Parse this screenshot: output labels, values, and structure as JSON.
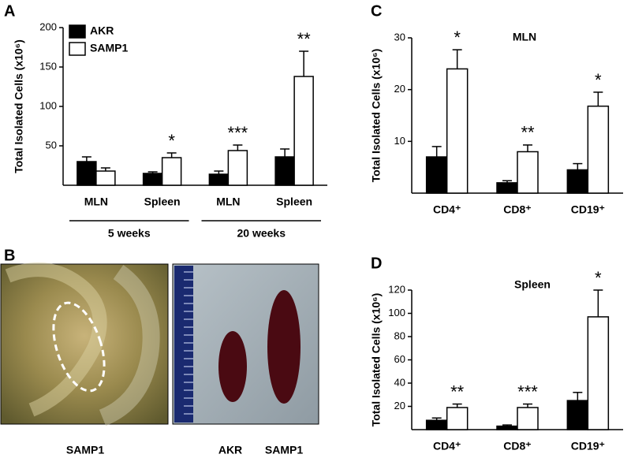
{
  "chart_data": [
    {
      "type": "bar",
      "panel_label": "A",
      "ylabel": "Total Isolated Cells (x10⁶)",
      "categories": [
        "MLN",
        "Spleen",
        "MLN",
        "Spleen"
      ],
      "groups": [
        "5 weeks",
        "20 weeks"
      ],
      "ylim": [
        0,
        200
      ],
      "yticks": [
        50,
        100,
        150,
        200
      ],
      "series": [
        {
          "name": "AKR",
          "color": "#000000",
          "values": [
            30,
            15,
            14,
            36
          ],
          "errors": [
            6,
            2,
            4,
            10
          ]
        },
        {
          "name": "SAMP1",
          "color": "#ffffff",
          "values": [
            18,
            35,
            44,
            138
          ],
          "errors": [
            4,
            6,
            7,
            32
          ]
        }
      ],
      "annotations": [
        null,
        "*",
        "***",
        "**"
      ]
    },
    {
      "type": "bar",
      "panel_label": "C",
      "title": "MLN",
      "ylabel": "Total Isolated Cells (x10⁶)",
      "categories": [
        "CD4⁺",
        "CD8⁺",
        "CD19⁺"
      ],
      "ylim": [
        0,
        30
      ],
      "yticks": [
        10,
        20,
        30
      ],
      "series": [
        {
          "name": "AKR",
          "color": "#000000",
          "values": [
            7,
            2,
            4.5
          ],
          "errors": [
            2,
            0.4,
            1.2
          ]
        },
        {
          "name": "SAMP1",
          "color": "#ffffff",
          "values": [
            24,
            8,
            16.8
          ],
          "errors": [
            3.7,
            1.3,
            2.7
          ]
        }
      ],
      "annotations": [
        "*",
        "**",
        "*"
      ]
    },
    {
      "type": "bar",
      "panel_label": "D",
      "title": "Spleen",
      "ylabel": "Total Isolated Cells (x10⁶)",
      "categories": [
        "CD4⁺",
        "CD8⁺",
        "CD19⁺"
      ],
      "ylim": [
        0,
        120
      ],
      "yticks": [
        20,
        40,
        60,
        80,
        100,
        120
      ],
      "series": [
        {
          "name": "AKR",
          "color": "#000000",
          "values": [
            8,
            3,
            25
          ],
          "errors": [
            2,
            1,
            7
          ]
        },
        {
          "name": "SAMP1",
          "color": "#ffffff",
          "values": [
            19,
            19,
            97
          ],
          "errors": [
            3,
            3,
            23
          ]
        }
      ],
      "annotations": [
        "**",
        "***",
        "*"
      ]
    }
  ],
  "panel_b": {
    "panel_label": "B",
    "left_caption": "SAMP1",
    "right_captions": [
      "AKR",
      "SAMP1"
    ]
  }
}
